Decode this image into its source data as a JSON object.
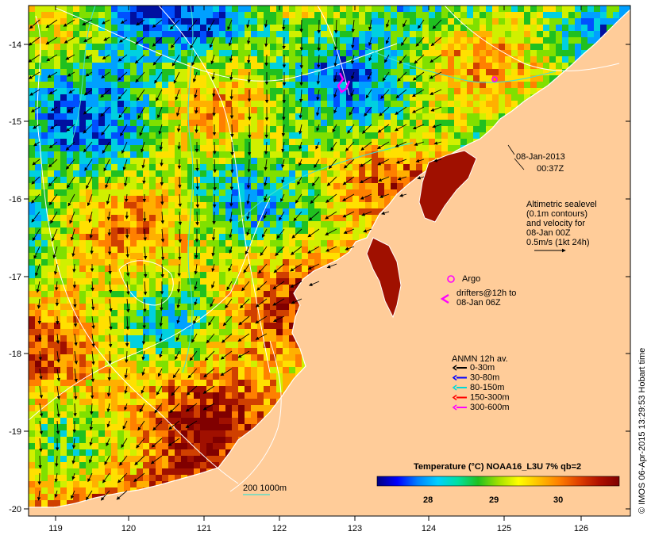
{
  "title": "",
  "datetime": {
    "line1": "08-Jan-2013",
    "line2": "00:37Z"
  },
  "altimetry": {
    "lines": [
      "Altimetric sealevel",
      "(0.1m contours)",
      "and velocity for",
      "08-Jan 00Z",
      "0.5m/s (1kt 24h)"
    ]
  },
  "argo_label": "Argo",
  "drifters": {
    "line1": "drifters@12h to",
    "line2": "08-Jan 06Z"
  },
  "anmn": {
    "title": "ANMN 12h av.",
    "items": [
      {
        "label": "0-30m",
        "color": "#000000"
      },
      {
        "label": "30-80m",
        "color": "#0000ff"
      },
      {
        "label": "80-150m",
        "color": "#00d8d8"
      },
      {
        "label": "150-300m",
        "color": "#ff0000"
      },
      {
        "label": "300-600m",
        "color": "#ff00ff"
      }
    ]
  },
  "colorbar": {
    "title": "Temperature (°C) NOAA16_L3U 7% qb=2",
    "ticks": [
      "28",
      "29",
      "30"
    ],
    "stops": [
      "#000080",
      "#0000ff",
      "#0080ff",
      "#00d0ff",
      "#00e0a0",
      "#20c020",
      "#a0e000",
      "#ffff00",
      "#ffc000",
      "#ff8000",
      "#e04000",
      "#b01000",
      "#800000"
    ]
  },
  "scale": {
    "label": "200  1000m"
  },
  "credit": "© IMOS 06-Apr-2015 13:29:53 Hobart time",
  "axes": {
    "x_ticks": [
      "119",
      "120",
      "121",
      "122",
      "123",
      "124",
      "125",
      "126"
    ],
    "y_ticks": [
      "-14",
      "-15",
      "-16",
      "-17",
      "-18",
      "-19",
      "-20"
    ]
  },
  "colors": {
    "land": "#ffcc99",
    "warm": "#a01000",
    "mid": "#f0a000",
    "cool": "#20c020",
    "cold": "#0060ff"
  }
}
